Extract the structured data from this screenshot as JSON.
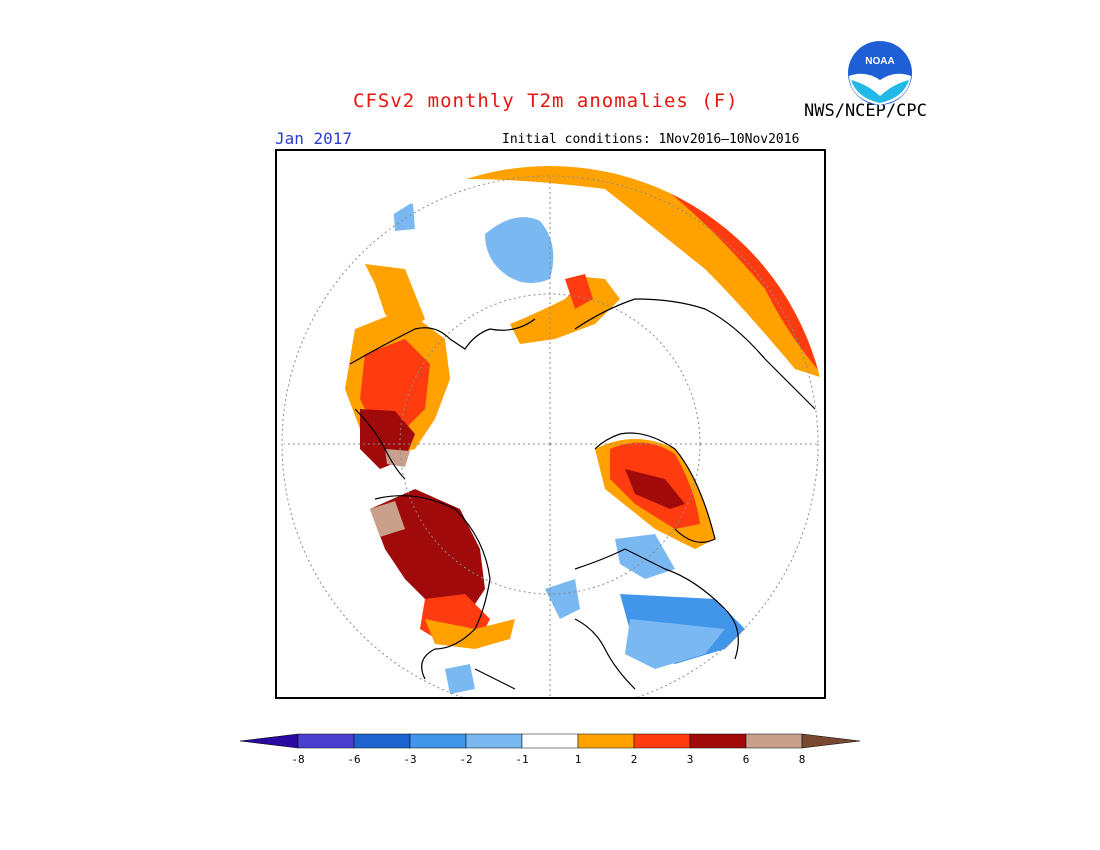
{
  "header": {
    "title": "CFSv2 monthly T2m anomalies (F)",
    "agency": "NWS/NCEP/CPC",
    "logo_text": "NOAA",
    "month": "Jan 2017",
    "initial_conditions": "Initial conditions: 1Nov2016–10Nov2016"
  },
  "map": {
    "projection": "north polar stereographic",
    "variable": "T2m anomaly",
    "units": "F"
  },
  "legend": {
    "ticks": [
      "-8",
      "-6",
      "-3",
      "-2",
      "-1",
      "1",
      "2",
      "3",
      "6",
      "8"
    ],
    "colors": [
      "#2a0aa0",
      "#4b3fd0",
      "#1e64d0",
      "#4196ea",
      "#7ab8f2",
      "#ffffff",
      "#ffa200",
      "#ff3c10",
      "#a00a0a",
      "#c8a08c",
      "#784830"
    ]
  }
}
